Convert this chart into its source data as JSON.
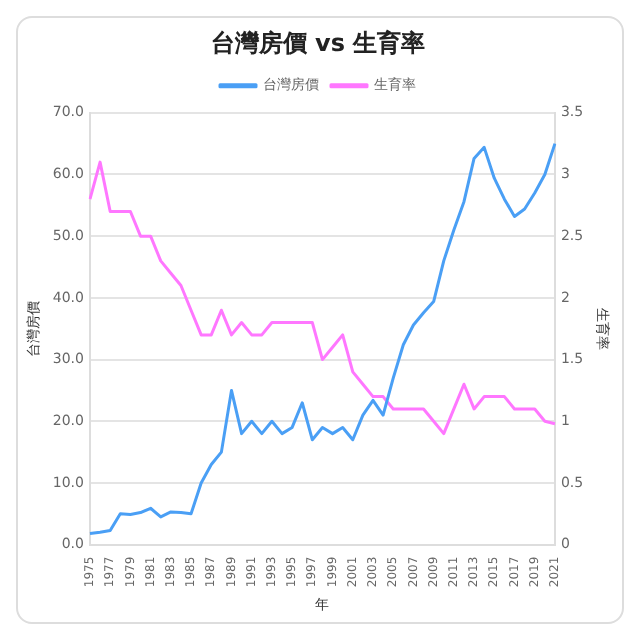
{
  "chart_data": {
    "type": "line",
    "title": "台灣房價 vs 生育率",
    "xlabel": "年",
    "ylabel": "台灣房價",
    "y2label": "生育率",
    "categories": [
      "1975",
      null,
      "1977",
      null,
      "1979",
      null,
      "1981",
      null,
      "1983",
      null,
      "1985",
      null,
      "1987",
      null,
      "1989",
      null,
      "1991",
      null,
      "1993",
      null,
      "1995",
      null,
      "1997",
      null,
      "1999",
      null,
      "2001",
      null,
      "2003",
      null,
      "2005",
      null,
      "2007",
      null,
      "2009",
      null,
      "2011",
      null,
      "2013",
      null,
      "2015",
      null,
      "2017",
      null,
      "2019",
      null,
      "2021"
    ],
    "series": [
      {
        "name": "台灣房價",
        "color": "#4a9ff5",
        "values": [
          1.8,
          2.0,
          2.3,
          5.0,
          4.9,
          5.2,
          5.9,
          4.5,
          5.3,
          5.2,
          5.0,
          10,
          13,
          15,
          25,
          18,
          20,
          18,
          20,
          18,
          19,
          23,
          17,
          19,
          18,
          19,
          17,
          21,
          23.4,
          21,
          27,
          32.4,
          35.6,
          37.6,
          39.4,
          46,
          51,
          55.6,
          62.6,
          64.4,
          59.4,
          56,
          53.2,
          54.4,
          57,
          60,
          65
        ]
      },
      {
        "name": "生育率",
        "color": "#ff77ff",
        "axis": "y2",
        "values": [
          2.8,
          3.1,
          2.7,
          2.7,
          2.7,
          2.5,
          2.5,
          2.3,
          2.2,
          2.1,
          1.9,
          1.7,
          1.7,
          1.9,
          1.7,
          1.8,
          1.7,
          1.7,
          1.8,
          1.8,
          1.8,
          1.8,
          1.8,
          1.5,
          1.6,
          1.7,
          1.4,
          1.3,
          1.2,
          1.2,
          1.1,
          1.1,
          1.1,
          1.1,
          1.0,
          0.9,
          1.1,
          1.3,
          1.1,
          1.2,
          1.2,
          1.2,
          1.1,
          1.1,
          1.1,
          1.0,
          0.98
        ]
      }
    ],
    "ylim": [
      0,
      70
    ],
    "yticks": [
      {
        "value": 0,
        "label": "0.0"
      },
      {
        "value": 10,
        "label": "10.0"
      },
      {
        "value": 20,
        "label": "20.0"
      },
      {
        "value": 30,
        "label": "30.0"
      },
      {
        "value": 40,
        "label": "40.0"
      },
      {
        "value": 50,
        "label": "50.0"
      },
      {
        "value": 60,
        "label": "60.0"
      },
      {
        "value": 70,
        "label": "70.0"
      }
    ],
    "y2lim": [
      0,
      3.5
    ],
    "y2ticks": [
      0,
      0.5,
      1,
      1.5,
      2,
      2.5,
      3,
      3.5
    ],
    "grid": "y",
    "legend": "top",
    "marker": "none",
    "line_style": "solid"
  }
}
